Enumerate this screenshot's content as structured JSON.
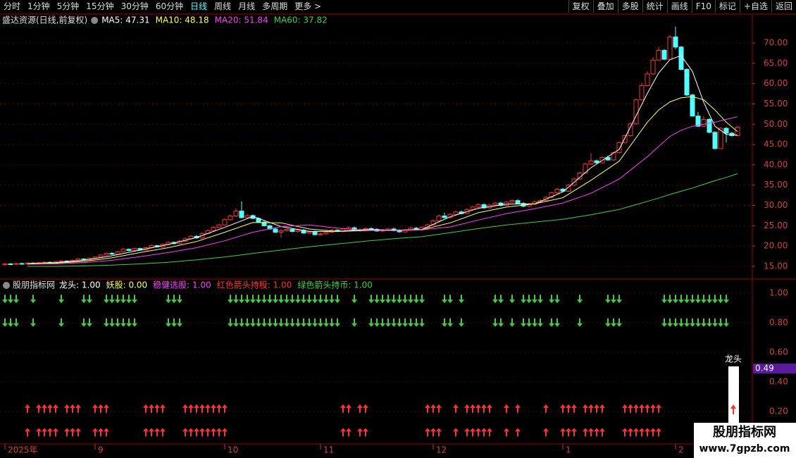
{
  "toolbar": {
    "periods": [
      "分时",
      "1分钟",
      "5分钟",
      "15分钟",
      "30分钟",
      "60分钟",
      "日线",
      "周线",
      "月线",
      "多周期",
      "更多 >"
    ],
    "active": 6,
    "tools": [
      "复权",
      "叠加",
      "多股",
      "统计",
      "画线",
      "F10",
      "标记",
      "+自选",
      "返回"
    ]
  },
  "chart_data": [
    {
      "type": "candlestick",
      "title": "盛达资源(日线,前复权)",
      "up_color": "#ff3232",
      "down_color": "#54ffff",
      "xlim": [
        -0.875,
        132.625
      ],
      "ylim": [
        12.05,
        74
      ],
      "yticks": [
        {
          "value": 70,
          "label": "70.00"
        },
        {
          "value": 65,
          "label": "65.00"
        },
        {
          "value": 60,
          "label": "60.00"
        },
        {
          "value": 55,
          "label": "55.00"
        },
        {
          "value": 50,
          "label": "50.00"
        },
        {
          "value": 45,
          "label": "45.00"
        },
        {
          "value": 40,
          "label": "40.00"
        },
        {
          "value": 35,
          "label": "35.00"
        },
        {
          "value": 30,
          "label": "30.00"
        },
        {
          "value": 25,
          "label": "25.00"
        },
        {
          "value": 20,
          "label": "20.00"
        },
        {
          "value": 15,
          "label": "15.00"
        }
      ],
      "xticks": [
        {
          "value": 0,
          "label": "2025年"
        },
        {
          "value": 16,
          "label": "9"
        },
        {
          "value": 39,
          "label": "10"
        },
        {
          "value": 56,
          "label": "11"
        },
        {
          "value": 76,
          "label": "12"
        },
        {
          "value": 99,
          "label": "1"
        },
        {
          "value": 119,
          "label": "2"
        }
      ],
      "open": [
        15.4,
        15.6,
        15.5,
        15.7,
        15.6,
        15.8,
        15.7,
        15.9,
        16.0,
        15.8,
        16.1,
        16.3,
        16.2,
        16.5,
        16.8,
        16.6,
        17.0,
        17.3,
        17.8,
        18.2,
        18.0,
        18.6,
        19.2,
        18.9,
        19.4,
        19.0,
        19.6,
        20.1,
        19.8,
        20.4,
        20.9,
        20.6,
        21.2,
        21.8,
        22.4,
        22.0,
        23.1,
        23.8,
        24.6,
        25.2,
        26.5,
        27.4,
        28.6,
        27.0,
        27.5,
        26.8,
        25.9,
        25.0,
        24.2,
        23.4,
        23.8,
        24.1,
        23.6,
        23.9,
        23.2,
        23.5,
        22.8,
        23.0,
        23.4,
        23.9,
        23.6,
        24.2,
        24.5,
        24.0,
        23.8,
        24.3,
        24.1,
        23.7,
        23.9,
        24.2,
        23.8,
        23.5,
        23.9,
        24.4,
        24.0,
        24.6,
        25.2,
        26.2,
        27.4,
        27.0,
        27.8,
        28.4,
        28.0,
        29.0,
        29.6,
        30.2,
        29.4,
        30.1,
        30.6,
        30.0,
        30.8,
        31.2,
        30.5,
        29.8,
        30.3,
        30.9,
        31.2,
        32.0,
        33.1,
        34.0,
        33.5,
        35.0,
        36.5,
        38.0,
        40.2,
        41.0,
        40.5,
        41.8,
        41.2,
        43.0,
        45.5,
        47.2,
        50.1,
        56.0,
        59.5,
        62.4,
        65.8,
        68.2,
        66.0,
        71.5,
        69.0,
        63.5,
        57.2,
        52.0,
        49.5,
        51.2,
        48.0,
        44.0,
        49.0,
        47.8,
        47.2
      ],
      "high": [
        15.8,
        15.8,
        15.9,
        15.9,
        16.0,
        16.0,
        16.1,
        16.2,
        16.2,
        16.3,
        16.5,
        16.5,
        16.7,
        17.0,
        17.0,
        17.2,
        17.5,
        18.0,
        18.4,
        18.5,
        18.8,
        19.5,
        19.4,
        19.6,
        19.6,
        19.8,
        20.4,
        20.3,
        20.6,
        21.2,
        21.1,
        21.5,
        22.1,
        22.7,
        22.7,
        23.4,
        24.1,
        24.9,
        25.5,
        26.8,
        27.8,
        29.3,
        31.0,
        27.9,
        27.8,
        27.1,
        26.2,
        25.3,
        24.5,
        24.1,
        24.4,
        24.4,
        24.2,
        24.2,
        23.8,
        23.8,
        23.3,
        23.7,
        24.2,
        24.2,
        24.5,
        24.8,
        24.8,
        24.3,
        24.6,
        24.6,
        24.4,
        24.2,
        24.5,
        24.5,
        24.1,
        24.2,
        24.7,
        24.7,
        24.9,
        25.5,
        26.6,
        27.8,
        28.2,
        28.1,
        28.7,
        28.7,
        29.3,
        29.9,
        30.5,
        30.5,
        30.4,
        30.9,
        30.9,
        31.1,
        31.5,
        31.5,
        30.8,
        30.6,
        31.2,
        31.5,
        32.3,
        33.4,
        34.3,
        34.3,
        35.3,
        36.8,
        38.3,
        40.5,
        42.8,
        41.3,
        42.1,
        42.3,
        43.3,
        45.8,
        47.5,
        50.4,
        56.3,
        60.2,
        63.0,
        66.5,
        69.0,
        68.5,
        72.0,
        74.0,
        69.3,
        63.8,
        57.5,
        53.0,
        52.0,
        51.5,
        48.3,
        49.3,
        49.3,
        48.1,
        49.6
      ],
      "low": [
        15.2,
        15.3,
        15.3,
        15.4,
        15.4,
        15.5,
        15.5,
        15.6,
        15.6,
        15.6,
        15.9,
        16.0,
        16.0,
        16.3,
        16.4,
        16.4,
        16.8,
        17.1,
        17.6,
        17.8,
        17.8,
        18.4,
        18.7,
        18.7,
        18.8,
        18.8,
        19.4,
        19.6,
        19.6,
        20.2,
        20.4,
        20.4,
        21.0,
        21.6,
        21.8,
        21.8,
        22.9,
        23.6,
        24.4,
        25.0,
        26.3,
        27.2,
        26.8,
        26.8,
        26.6,
        25.7,
        24.8,
        24.0,
        23.2,
        22.0,
        23.6,
        23.4,
        23.4,
        23.0,
        23.0,
        22.6,
        22.6,
        22.8,
        23.2,
        23.4,
        23.4,
        24.0,
        23.8,
        23.6,
        23.6,
        23.9,
        23.5,
        23.5,
        23.7,
        23.6,
        23.3,
        23.3,
        23.7,
        23.8,
        23.8,
        24.4,
        25.0,
        26.0,
        26.8,
        26.8,
        27.6,
        27.8,
        27.8,
        28.8,
        29.4,
        29.2,
        29.2,
        29.9,
        29.8,
        29.8,
        30.6,
        30.3,
        29.6,
        29.6,
        30.1,
        30.7,
        31.0,
        31.8,
        32.9,
        33.3,
        33.3,
        34.8,
        36.3,
        37.8,
        40.0,
        40.3,
        40.3,
        41.0,
        41.0,
        42.8,
        45.3,
        47.0,
        49.9,
        55.8,
        59.3,
        62.2,
        65.6,
        65.8,
        65.8,
        68.5,
        63.3,
        57.0,
        52.0,
        49.3,
        49.3,
        47.8,
        43.8,
        44.0,
        45.5,
        47.0,
        47.0
      ],
      "close": [
        15.6,
        15.5,
        15.7,
        15.6,
        15.8,
        15.7,
        15.9,
        16.0,
        15.8,
        16.1,
        16.3,
        16.2,
        16.5,
        16.8,
        16.6,
        17.0,
        17.3,
        17.8,
        18.2,
        18.0,
        18.6,
        19.2,
        18.9,
        19.4,
        19.0,
        19.6,
        20.1,
        19.8,
        20.4,
        20.9,
        20.6,
        21.2,
        21.8,
        22.4,
        22.0,
        23.1,
        23.8,
        24.6,
        25.2,
        26.5,
        27.4,
        28.6,
        27.0,
        27.5,
        26.8,
        25.9,
        25.0,
        24.2,
        23.4,
        23.8,
        24.1,
        23.6,
        23.9,
        23.2,
        23.5,
        22.8,
        23.0,
        23.4,
        23.9,
        23.6,
        24.2,
        24.5,
        24.0,
        23.8,
        24.3,
        24.1,
        23.7,
        23.9,
        24.2,
        23.8,
        23.5,
        23.9,
        24.4,
        24.0,
        24.6,
        25.2,
        26.2,
        27.4,
        27.0,
        27.8,
        28.4,
        28.0,
        29.0,
        29.6,
        30.2,
        29.4,
        30.1,
        30.6,
        30.0,
        30.8,
        31.2,
        30.5,
        29.8,
        30.3,
        30.9,
        31.2,
        32.0,
        33.1,
        34.0,
        33.5,
        35.0,
        36.5,
        38.0,
        40.2,
        41.0,
        40.5,
        41.8,
        41.2,
        43.0,
        45.5,
        47.2,
        50.1,
        56.0,
        59.5,
        62.4,
        65.8,
        68.2,
        66.0,
        71.5,
        69.0,
        63.5,
        57.2,
        52.0,
        49.5,
        51.2,
        48.0,
        44.0,
        49.0,
        47.8,
        47.2,
        49.3
      ],
      "ma": [
        {
          "label": "MA5: 47.31",
          "color": "#ffffff",
          "x": [
            4,
            9,
            14,
            19,
            24,
            29,
            34,
            39,
            44,
            49,
            54,
            59,
            64,
            69,
            74,
            79,
            84,
            89,
            94,
            99,
            104,
            109,
            114,
            116,
            118,
            120,
            122,
            124,
            126,
            128,
            130
          ],
          "values": [
            15.7,
            15.9,
            16.5,
            17.6,
            19.0,
            20.4,
            22.1,
            24.6,
            27.3,
            24.8,
            23.6,
            23.6,
            24.1,
            23.9,
            24.1,
            27.2,
            29.3,
            30.3,
            30.4,
            33.3,
            39.3,
            43.8,
            57.6,
            62.6,
            65.9,
            66.9,
            63.0,
            55.4,
            49.5,
            47.5,
            47.31
          ]
        },
        {
          "label": "MA10: 48.18",
          "color": "#ffff54",
          "x": [
            4,
            9,
            14,
            19,
            24,
            29,
            34,
            39,
            44,
            49,
            54,
            59,
            64,
            69,
            74,
            79,
            84,
            89,
            94,
            99,
            104,
            109,
            114,
            116,
            118,
            120,
            122,
            124,
            126,
            128,
            130
          ],
          "values": [
            15.7,
            15.8,
            16.2,
            17.1,
            18.4,
            19.6,
            21.1,
            23.4,
            25.8,
            25.7,
            24.2,
            23.6,
            23.8,
            23.9,
            24.0,
            25.7,
            28.2,
            29.6,
            30.4,
            31.9,
            36.2,
            40.9,
            50.5,
            53.5,
            55.5,
            56.5,
            56.8,
            56.0,
            53.5,
            50.5,
            48.18
          ]
        },
        {
          "label": "MA20: 51.84",
          "color": "#ff3cff",
          "x": [
            4,
            9,
            14,
            19,
            24,
            29,
            34,
            39,
            44,
            49,
            54,
            59,
            64,
            69,
            74,
            79,
            84,
            89,
            94,
            99,
            104,
            109,
            114,
            116,
            118,
            120,
            122,
            124,
            126,
            128,
            130
          ],
          "values": [
            15.5,
            15.6,
            15.9,
            16.5,
            17.4,
            18.4,
            19.6,
            21.3,
            23.4,
            24.8,
            25.2,
            24.4,
            23.9,
            23.8,
            24.0,
            24.7,
            26.4,
            28.0,
            29.2,
            30.6,
            33.0,
            36.5,
            42.0,
            44.5,
            47.0,
            48.5,
            49.5,
            50.0,
            50.5,
            51.2,
            51.84
          ]
        },
        {
          "label": "MA60: 37.82",
          "color": "#3cd23c",
          "x": [
            4,
            9,
            14,
            19,
            24,
            29,
            34,
            39,
            44,
            49,
            54,
            59,
            64,
            69,
            74,
            79,
            84,
            89,
            94,
            99,
            104,
            109,
            114,
            116,
            118,
            120,
            122,
            124,
            126,
            128,
            130
          ],
          "values": [
            15.0,
            15.0,
            15.1,
            15.3,
            15.6,
            16.0,
            16.6,
            17.3,
            18.2,
            19.0,
            19.8,
            20.5,
            21.2,
            21.8,
            22.3,
            23.3,
            24.3,
            25.2,
            25.9,
            26.6,
            27.7,
            29.0,
            31.0,
            31.8,
            32.7,
            33.5,
            34.3,
            35.2,
            36.1,
            36.9,
            37.82
          ]
        }
      ]
    },
    {
      "type": "signal",
      "title": "股朋指标网",
      "ylim": [
        0,
        1.09
      ],
      "yticks": [
        {
          "value": 1,
          "label": "1.00"
        },
        {
          "value": 0.8,
          "label": "0.80"
        },
        {
          "value": 0.6,
          "label": "0.60"
        },
        {
          "value": 0.4,
          "label": "0.40"
        },
        {
          "value": 0.2,
          "label": "0.20"
        }
      ],
      "legend": [
        {
          "label": "龙头: 1.00",
          "color": "#ffffff"
        },
        {
          "label": "妖股: 0.00",
          "color": "#ffff54"
        },
        {
          "label": "稳健选股: 1.00",
          "color": "#ff3cff"
        },
        {
          "label": "红色箭头持股: 1.00",
          "color": "#ff3232"
        },
        {
          "label": "绿色箭头持币: 1.00",
          "color": "#3cd23c"
        }
      ],
      "bar_label": "龙头",
      "cursor_label": {
        "value": 0.49,
        "label": "0.49"
      },
      "series": [
        {
          "name": "绿色箭头持币",
          "color": "#3cd23c",
          "direction": "down",
          "levels": [
            0.96,
            0.8
          ],
          "x": [
            0,
            1,
            2,
            5,
            10,
            14,
            15,
            18,
            19,
            20,
            21,
            22,
            23,
            29,
            30,
            31,
            40,
            41,
            42,
            43,
            44,
            45,
            46,
            47,
            48,
            49,
            50,
            51,
            52,
            53,
            54,
            55,
            56,
            57,
            58,
            59,
            62,
            65,
            66,
            67,
            68,
            69,
            70,
            71,
            72,
            73,
            74,
            78,
            79,
            81,
            87,
            88,
            90,
            92,
            93,
            94,
            95,
            97,
            98,
            102,
            107,
            108,
            109,
            117,
            118,
            119,
            120,
            121,
            122,
            123,
            124,
            125,
            126,
            127,
            128
          ]
        },
        {
          "name": "红色箭头持股",
          "color": "#ff3232",
          "direction": "up",
          "levels": [
            0.22,
            0.06
          ],
          "x": [
            4,
            6,
            7,
            8,
            9,
            11,
            12,
            13,
            16,
            17,
            18,
            25,
            26,
            27,
            28,
            32,
            33,
            34,
            35,
            36,
            37,
            38,
            39,
            60,
            61,
            63,
            64,
            75,
            76,
            77,
            80,
            82,
            83,
            84,
            85,
            86,
            89,
            91,
            96,
            99,
            100,
            101,
            103,
            104,
            105,
            106,
            110,
            111,
            112,
            113,
            114,
            115,
            116
          ]
        }
      ]
    }
  ],
  "watermark": {
    "name": "股朋指标网",
    "url": "www.7gpzb.com"
  }
}
